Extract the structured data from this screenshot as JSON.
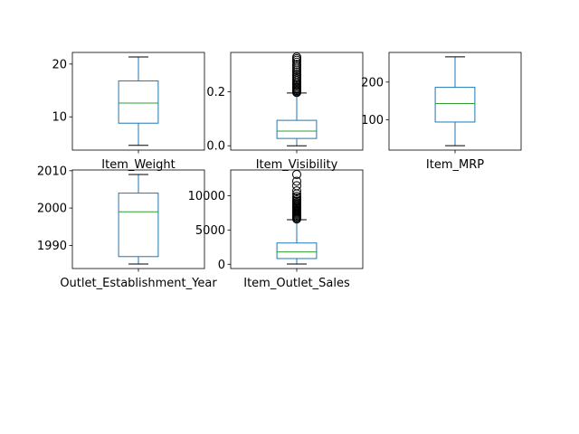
{
  "colors": {
    "box": "#1f77b4",
    "median": "#2ca02c",
    "axes": "#000000"
  },
  "chart_data": [
    {
      "type": "box",
      "category": "Item_Weight",
      "whisker_low": 4.6,
      "q1": 8.8,
      "median": 12.6,
      "q3": 16.8,
      "whisker_high": 21.35,
      "outliers": [],
      "ylim": [
        3.7,
        22.2
      ],
      "yticks": [
        10,
        20
      ],
      "ytick_labels": [
        "10",
        "20"
      ]
    },
    {
      "type": "box",
      "category": "Item_Visibility",
      "whisker_low": 0.0,
      "q1": 0.027,
      "median": 0.054,
      "q3": 0.094,
      "whisker_high": 0.195,
      "outliers": [
        0.197,
        0.2,
        0.204,
        0.208,
        0.212,
        0.216,
        0.221,
        0.225,
        0.23,
        0.236,
        0.242,
        0.248,
        0.254,
        0.26,
        0.266,
        0.273,
        0.28,
        0.287,
        0.294,
        0.301,
        0.309,
        0.316,
        0.322,
        0.328
      ],
      "ylim": [
        -0.016,
        0.345
      ],
      "yticks": [
        0.0,
        0.2
      ],
      "ytick_labels": [
        "0.0",
        "0.2"
      ]
    },
    {
      "type": "box",
      "category": "Item_MRP",
      "whisker_low": 31.3,
      "q1": 94,
      "median": 143,
      "q3": 186,
      "whisker_high": 266.9,
      "outliers": [],
      "ylim": [
        19.5,
        278.7
      ],
      "yticks": [
        100,
        200
      ],
      "ytick_labels": [
        "100",
        "200"
      ]
    },
    {
      "type": "box",
      "category": "Outlet_Establishment_Year",
      "whisker_low": 1985,
      "q1": 1987,
      "median": 1999,
      "q3": 2004,
      "whisker_high": 2009,
      "outliers": [],
      "ylim": [
        1983.8,
        2010.2
      ],
      "yticks": [
        1990,
        2000,
        2010
      ],
      "ytick_labels": [
        "1990",
        "2000",
        "2010"
      ]
    },
    {
      "type": "box",
      "category": "Item_Outlet_Sales",
      "whisker_low": 33,
      "q1": 834,
      "median": 1794,
      "q3": 3101,
      "whisker_high": 6500,
      "outliers": [
        6600,
        6750,
        6900,
        7050,
        7200,
        7350,
        7500,
        7650,
        7800,
        7950,
        8100,
        8250,
        8400,
        8550,
        8700,
        8850,
        9000,
        9200,
        9400,
        9650,
        9900,
        10250,
        10700,
        11450,
        12100,
        13087
      ],
      "ylim": [
        -620,
        13740
      ],
      "yticks": [
        0,
        5000,
        10000
      ],
      "ytick_labels": [
        "0",
        "5000",
        "10000"
      ]
    }
  ]
}
